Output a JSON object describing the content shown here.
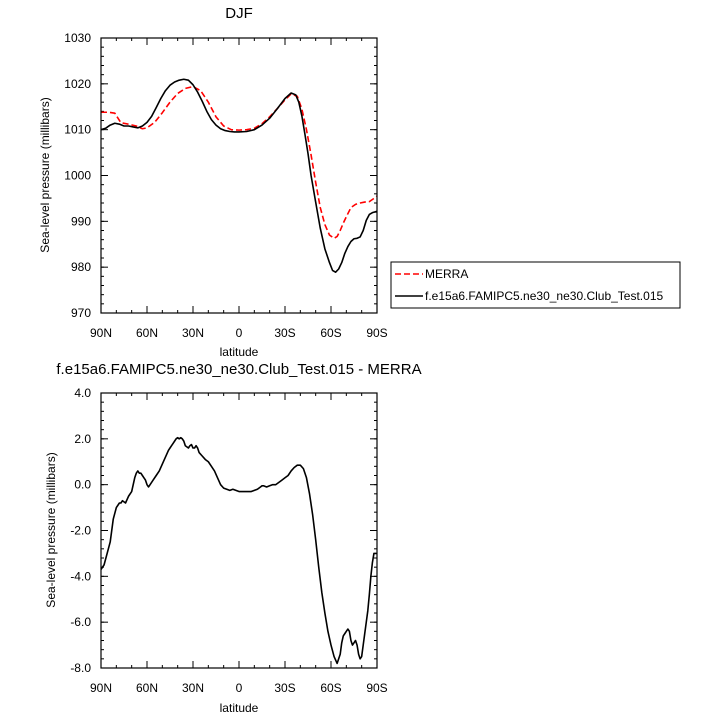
{
  "chart_data": [
    {
      "type": "line",
      "title": "DJF",
      "xlabel": "latitude",
      "ylabel": "Sea-level pressure (millibars)",
      "xlim": [
        90,
        -90
      ],
      "ylim": [
        970,
        1030
      ],
      "x_ticks": [
        {
          "v": 90,
          "label": "90N"
        },
        {
          "v": 60,
          "label": "60N"
        },
        {
          "v": 30,
          "label": "30N"
        },
        {
          "v": 0,
          "label": "0"
        },
        {
          "v": -30,
          "label": "30S"
        },
        {
          "v": -60,
          "label": "60S"
        },
        {
          "v": -90,
          "label": "90S"
        }
      ],
      "y_ticks": [
        {
          "v": 970,
          "label": "970"
        },
        {
          "v": 980,
          "label": "980"
        },
        {
          "v": 990,
          "label": "990"
        },
        {
          "v": 1000,
          "label": "1000"
        },
        {
          "v": 1010,
          "label": "1010"
        },
        {
          "v": 1020,
          "label": "1020"
        },
        {
          "v": 1030,
          "label": "1030"
        }
      ],
      "legend": {
        "placement": "outside-right"
      },
      "series": [
        {
          "name": "MERRA",
          "color": "#ff0000",
          "dash": true,
          "x": [
            90,
            85,
            81,
            77,
            72,
            67,
            63,
            60,
            55,
            50,
            45,
            40,
            35,
            30,
            25,
            20,
            15,
            10,
            5,
            0,
            -5,
            -10,
            -15,
            -20,
            -25,
            -30,
            -34,
            -38,
            -41,
            -44,
            -47,
            -50,
            -53,
            -56,
            -59,
            -62,
            -64,
            -66,
            -68,
            -70,
            -73,
            -76,
            -79,
            -82,
            -85,
            -88,
            -90
          ],
          "y": [
            1013.8,
            1013.8,
            1013.6,
            1011.5,
            1011.2,
            1010.8,
            1010.2,
            1010.4,
            1011.6,
            1013.7,
            1016.0,
            1017.9,
            1019.0,
            1019.4,
            1018.5,
            1016.0,
            1012.8,
            1010.8,
            1010.0,
            1009.9,
            1010.0,
            1010.3,
            1011.3,
            1012.8,
            1014.6,
            1016.5,
            1017.8,
            1017.3,
            1014.5,
            1010.0,
            1004.5,
            998.5,
            993.0,
            989.3,
            987.0,
            986.3,
            986.7,
            988.0,
            989.6,
            991.0,
            993.0,
            993.7,
            994.0,
            994.2,
            994.3,
            995.0,
            995.5
          ]
        },
        {
          "name": "f.e15a6.FAMIPC5.ne30_ne30.Club_Test.015",
          "color": "#000000",
          "dash": false,
          "x": [
            90,
            87,
            84,
            81,
            78,
            75,
            72,
            69,
            66,
            63,
            60,
            57,
            54,
            51,
            48,
            45,
            42,
            39,
            36,
            33,
            30,
            27,
            24,
            21,
            18,
            15,
            12,
            9,
            6,
            3,
            0,
            -5,
            -10,
            -15,
            -20,
            -25,
            -30,
            -34,
            -37,
            -39,
            -41,
            -43,
            -45,
            -47,
            -50,
            -53,
            -56,
            -59,
            -61,
            -63,
            -65,
            -67,
            -69,
            -71,
            -73,
            -75,
            -77,
            -79,
            -81,
            -83,
            -85,
            -87,
            -89,
            -90
          ],
          "y": [
            1010.0,
            1010.3,
            1011.0,
            1011.4,
            1011.2,
            1010.8,
            1010.8,
            1010.6,
            1010.4,
            1010.8,
            1011.6,
            1012.9,
            1014.8,
            1016.8,
            1018.5,
            1019.7,
            1020.4,
            1020.8,
            1021.0,
            1020.8,
            1019.8,
            1018.2,
            1016.2,
            1014.0,
            1012.2,
            1011.0,
            1010.2,
            1009.8,
            1009.6,
            1009.5,
            1009.5,
            1009.6,
            1010.0,
            1011.0,
            1012.5,
            1014.6,
            1016.8,
            1018.0,
            1017.6,
            1016.0,
            1013.0,
            1009.0,
            1004.8,
            1000.0,
            994.2,
            988.5,
            984.0,
            981.0,
            979.3,
            978.9,
            979.6,
            981.0,
            983.0,
            984.5,
            985.6,
            986.2,
            986.3,
            986.6,
            988.0,
            990.2,
            991.5,
            991.9,
            992.1,
            992.2
          ]
        }
      ]
    },
    {
      "type": "line",
      "title": "f.e15a6.FAMIPC5.ne30_ne30.Club_Test.015 - MERRA",
      "xlabel": "latitude",
      "ylabel": "Sea-level pressure (millibars)",
      "xlim": [
        90,
        -90
      ],
      "ylim": [
        -8,
        4
      ],
      "x_ticks": [
        {
          "v": 90,
          "label": "90N"
        },
        {
          "v": 60,
          "label": "60N"
        },
        {
          "v": 30,
          "label": "30N"
        },
        {
          "v": 0,
          "label": "0"
        },
        {
          "v": -30,
          "label": "30S"
        },
        {
          "v": -60,
          "label": "60S"
        },
        {
          "v": -90,
          "label": "90S"
        }
      ],
      "y_ticks": [
        {
          "v": -8,
          "label": "-8.0"
        },
        {
          "v": -6,
          "label": "-6.0"
        },
        {
          "v": -4,
          "label": "-4.0"
        },
        {
          "v": -2,
          "label": "-2.0"
        },
        {
          "v": 0,
          "label": "0.0"
        },
        {
          "v": 2,
          "label": "2.0"
        },
        {
          "v": 4,
          "label": "4.0"
        }
      ],
      "series": [
        {
          "color": "#000000",
          "dash": false,
          "x": [
            90,
            88,
            86,
            84,
            82,
            80,
            78,
            77,
            76,
            74,
            72,
            70,
            69,
            68,
            67,
            66,
            65,
            64,
            63,
            62,
            61,
            60,
            59,
            58,
            56,
            54,
            52,
            50,
            48,
            46,
            45,
            44,
            43,
            42,
            41,
            40,
            39,
            38,
            37,
            36,
            35,
            34,
            33,
            32,
            31,
            30,
            29,
            28,
            27,
            26,
            24,
            22,
            20,
            18,
            16,
            14,
            12,
            10,
            8,
            6,
            4,
            2,
            0,
            -2,
            -4,
            -6,
            -8,
            -10,
            -12,
            -14,
            -15,
            -16,
            -18,
            -20,
            -22,
            -24,
            -26,
            -28,
            -30,
            -32,
            -34,
            -36,
            -38,
            -40,
            -42,
            -44,
            -46,
            -48,
            -50,
            -52,
            -54,
            -56,
            -58,
            -60,
            -62,
            -64,
            -66,
            -67,
            -68,
            -69,
            -70,
            -71,
            -72,
            -73,
            -74,
            -75,
            -76,
            -77,
            -78,
            -79,
            -80,
            -81,
            -82,
            -83,
            -84,
            -85,
            -86,
            -87,
            -88,
            -89,
            -90
          ],
          "y": [
            -3.7,
            -3.5,
            -3.0,
            -2.5,
            -1.5,
            -1.0,
            -0.8,
            -0.8,
            -0.7,
            -0.8,
            -0.5,
            -0.3,
            0.0,
            0.3,
            0.5,
            0.6,
            0.5,
            0.5,
            0.4,
            0.3,
            0.2,
            0.0,
            -0.1,
            0.0,
            0.2,
            0.4,
            0.6,
            0.9,
            1.2,
            1.5,
            1.6,
            1.7,
            1.8,
            1.9,
            2.0,
            2.05,
            2.0,
            2.05,
            2.0,
            1.9,
            1.7,
            1.65,
            1.6,
            1.7,
            1.75,
            1.6,
            1.6,
            1.7,
            1.6,
            1.4,
            1.25,
            1.1,
            1.0,
            0.8,
            0.6,
            0.3,
            0.0,
            -0.15,
            -0.2,
            -0.25,
            -0.2,
            -0.25,
            -0.3,
            -0.3,
            -0.3,
            -0.3,
            -0.3,
            -0.25,
            -0.2,
            -0.1,
            -0.05,
            -0.05,
            -0.1,
            -0.05,
            0.0,
            0.0,
            0.1,
            0.2,
            0.3,
            0.4,
            0.6,
            0.75,
            0.85,
            0.85,
            0.7,
            0.3,
            -0.4,
            -1.3,
            -2.4,
            -3.6,
            -4.7,
            -5.6,
            -6.4,
            -7.0,
            -7.5,
            -7.8,
            -7.4,
            -6.9,
            -6.6,
            -6.5,
            -6.4,
            -6.3,
            -6.4,
            -6.8,
            -7.0,
            -6.9,
            -6.8,
            -7.0,
            -7.4,
            -7.6,
            -7.5,
            -7.0,
            -6.5,
            -6.0,
            -5.5,
            -4.8,
            -4.0,
            -3.4,
            -3.0,
            -3.0,
            -3.0
          ]
        }
      ]
    }
  ]
}
